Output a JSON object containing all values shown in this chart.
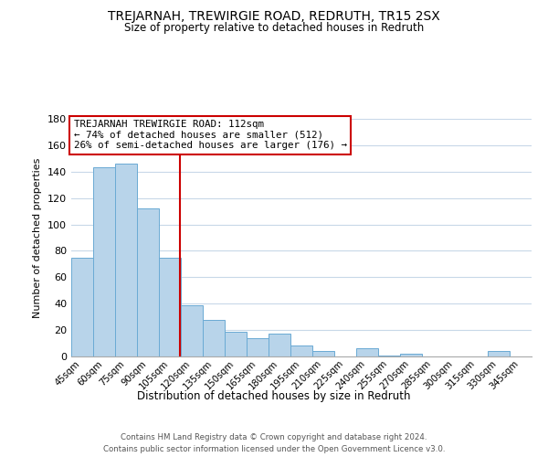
{
  "title": "TREJARNAH, TREWIRGIE ROAD, REDRUTH, TR15 2SX",
  "subtitle": "Size of property relative to detached houses in Redruth",
  "xlabel": "Distribution of detached houses by size in Redruth",
  "ylabel": "Number of detached properties",
  "bar_labels": [
    "45sqm",
    "60sqm",
    "75sqm",
    "90sqm",
    "105sqm",
    "120sqm",
    "135sqm",
    "150sqm",
    "165sqm",
    "180sqm",
    "195sqm",
    "210sqm",
    "225sqm",
    "240sqm",
    "255sqm",
    "270sqm",
    "285sqm",
    "300sqm",
    "315sqm",
    "330sqm",
    "345sqm"
  ],
  "bar_values": [
    75,
    143,
    146,
    112,
    75,
    39,
    28,
    19,
    14,
    17,
    8,
    4,
    0,
    6,
    1,
    2,
    0,
    0,
    0,
    4,
    0
  ],
  "bar_color": "#b8d4ea",
  "bar_edge_color": "#6aaad4",
  "ylim": [
    0,
    180
  ],
  "yticks": [
    0,
    20,
    40,
    60,
    80,
    100,
    120,
    140,
    160,
    180
  ],
  "annotation_line1": "TREJARNAH TREWIRGIE ROAD: 112sqm",
  "annotation_line2": "← 74% of detached houses are smaller (512)",
  "annotation_line3": "26% of semi-detached houses are larger (176) →",
  "vline_color": "#cc0000",
  "footer1": "Contains HM Land Registry data © Crown copyright and database right 2024.",
  "footer2": "Contains public sector information licensed under the Open Government Licence v3.0.",
  "background_color": "#ffffff",
  "grid_color": "#c8d8e8"
}
